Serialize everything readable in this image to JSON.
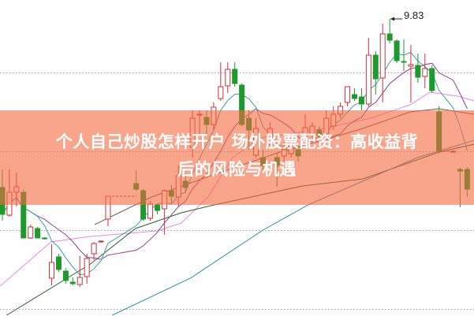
{
  "title": {
    "line1": "个人自己炒股怎样开户 场外股票配资：高收益背",
    "line2": "后的风险与机遇"
  },
  "colors": {
    "up": "#d0303a",
    "down": "#1c9a2c",
    "banner": "#f5693f",
    "ma5": "#3a9fa6",
    "ma10": "#8e3f8e",
    "ma_pink": "#e48ae4",
    "ma_brown": "#8a4a3a",
    "ma_green": "#2f5a2f",
    "ma_blue": "#2f8fa0",
    "grid": "#9a9a9a"
  },
  "chart_data": {
    "type": "candlestick",
    "high_label": "9.83",
    "grid": "horizontal dotted",
    "candle_fields": [
      "open",
      "close",
      "high",
      "low"
    ],
    "candles": [
      [
        7.69,
        7.35,
        7.92,
        7.27
      ],
      [
        7.34,
        7.63,
        7.92,
        7.32
      ],
      [
        7.63,
        7.7,
        7.88,
        7.45
      ],
      [
        7.63,
        7.05,
        7.67,
        7.05
      ],
      [
        7.05,
        7.19,
        7.22,
        7.04
      ],
      [
        7.17,
        7.05,
        7.19,
        7.05
      ],
      [
        7.05,
        7.04,
        7.06,
        7.03
      ],
      [
        6.54,
        6.74,
        6.97,
        6.45
      ],
      [
        6.81,
        6.65,
        6.85,
        6.62
      ],
      [
        6.63,
        6.51,
        6.67,
        6.47
      ],
      [
        6.49,
        6.47,
        6.55,
        6.45
      ],
      [
        6.46,
        6.55,
        6.82,
        6.43
      ],
      [
        6.56,
        6.79,
        6.85,
        6.47
      ],
      [
        6.85,
        6.98,
        7.0,
        6.77
      ],
      [
        7.0,
        7.01,
        7.02,
        6.99
      ],
      [
        7.29,
        7.58,
        7.58,
        7.2
      ],
      null,
      null,
      null,
      [
        7.74,
        7.67,
        7.91,
        7.65
      ],
      [
        7.65,
        7.29,
        7.67,
        7.27
      ],
      [
        7.3,
        7.48,
        7.52,
        7.27
      ],
      [
        7.47,
        7.4,
        7.49,
        7.35
      ],
      [
        7.42,
        7.65,
        7.67,
        7.09
      ],
      [
        7.65,
        7.58,
        7.72,
        7.49
      ],
      [
        7.57,
        7.84,
        7.97,
        7.45
      ],
      [
        7.77,
        7.69,
        7.87,
        7.62
      ],
      [
        8.2,
        8.57,
        8.67,
        8.07
      ],
      [
        8.61,
        8.62,
        8.67,
        8.37
      ],
      [
        8.58,
        8.49,
        8.67,
        8.37
      ],
      [
        8.49,
        8.71,
        8.77,
        8.42
      ],
      [
        8.82,
        8.97,
        9.28,
        8.79
      ],
      [
        8.98,
        9.19,
        9.28,
        8.89
      ],
      [
        9.19,
        9.01,
        9.28,
        8.97
      ],
      [
        8.99,
        8.49,
        9.01,
        8.47
      ],
      [
        8.57,
        8.42,
        8.67,
        8.17
      ],
      [
        8.1,
        8.44,
        8.57,
        8.07
      ],
      [
        8.07,
        7.97,
        8.17,
        7.92
      ],
      [
        8.27,
        8.44,
        8.52,
        8.22
      ],
      [
        8.07,
        7.97,
        8.12,
        7.7
      ],
      [
        8.09,
        8.17,
        8.27,
        8.02
      ],
      [
        8.12,
        8.32,
        8.37,
        8.07
      ],
      [
        8.17,
        8.09,
        8.22,
        8.02
      ],
      [
        8.34,
        8.45,
        8.62,
        8.27
      ],
      [
        8.37,
        8.47,
        8.52,
        8.32
      ],
      [
        8.42,
        8.35,
        8.47,
        8.29
      ],
      [
        8.37,
        8.57,
        8.67,
        8.32
      ],
      [
        8.47,
        8.62,
        8.72,
        8.42
      ],
      [
        8.62,
        8.72,
        8.77,
        8.57
      ],
      [
        8.77,
        8.97,
        8.97,
        8.72
      ],
      [
        8.87,
        8.82,
        8.95,
        8.79
      ],
      [
        8.84,
        8.75,
        8.95,
        8.67
      ],
      [
        8.75,
        9.37,
        9.59,
        8.72
      ],
      [
        9.37,
        9.07,
        9.42,
        8.87
      ],
      [
        9.08,
        9.64,
        9.77,
        8.77
      ],
      [
        9.64,
        9.56,
        9.83,
        9.52
      ],
      [
        9.55,
        9.3,
        9.57,
        9.27
      ],
      [
        9.29,
        9.28,
        9.57,
        9.17
      ],
      [
        9.23,
        9.25,
        9.5,
        8.77
      ],
      [
        9.24,
        9.09,
        9.39,
        9.02
      ],
      [
        9.1,
        9.2,
        9.39,
        8.95
      ],
      [
        9.2,
        8.92,
        9.24,
        8.89
      ],
      [
        8.65,
        8.15,
        8.72,
        8.12
      ],
      null,
      [
        8.14,
        8.15,
        8.16,
        8.13
      ],
      [
        7.92,
        7.9,
        7.94,
        7.44
      ],
      [
        7.92,
        7.67,
        7.95,
        7.57
      ]
    ],
    "moving_averages": [
      {
        "key": "ma_pink",
        "points": [
          [
            -0.3,
            6.44
          ],
          [
            6.9,
            7.0
          ],
          [
            12.5,
            7.07
          ],
          [
            22,
            7.14
          ],
          [
            25.4,
            7.24
          ],
          [
            29.2,
            7.57
          ],
          [
            32.7,
            8.07
          ],
          [
            36.6,
            8.32
          ],
          [
            44.5,
            8.42
          ],
          [
            52.3,
            8.57
          ],
          [
            57.9,
            8.74
          ],
          [
            60.7,
            8.9
          ],
          [
            64.6,
            8.85
          ],
          [
            67,
            8.79
          ]
        ]
      },
      {
        "key": "ma_brown",
        "points": [
          [
            13.1,
            7.22
          ],
          [
            21.2,
            7.57
          ],
          [
            29.9,
            7.85
          ],
          [
            39.4,
            8.14
          ],
          [
            46.7,
            8.32
          ],
          [
            51.2,
            8.44
          ],
          [
            57.9,
            8.65
          ],
          [
            62,
            8.69
          ],
          [
            67,
            8.62
          ]
        ]
      },
      {
        "key": "ma_green",
        "points": [
          [
            0.6,
            6.07
          ],
          [
            12.5,
            6.72
          ],
          [
            18.9,
            7.17
          ],
          [
            25.4,
            7.37
          ],
          [
            30.1,
            7.47
          ],
          [
            42.6,
            7.71
          ],
          [
            51.2,
            7.8
          ],
          [
            62,
            8.14
          ],
          [
            67,
            8.24
          ]
        ]
      },
      {
        "key": "ma_blue",
        "points": [
          [
            15.6,
            6.07
          ],
          [
            26.7,
            6.54
          ],
          [
            37,
            7.15
          ],
          [
            43.4,
            7.47
          ],
          [
            58.9,
            8.07
          ],
          [
            67,
            8.29
          ]
        ]
      }
    ]
  }
}
